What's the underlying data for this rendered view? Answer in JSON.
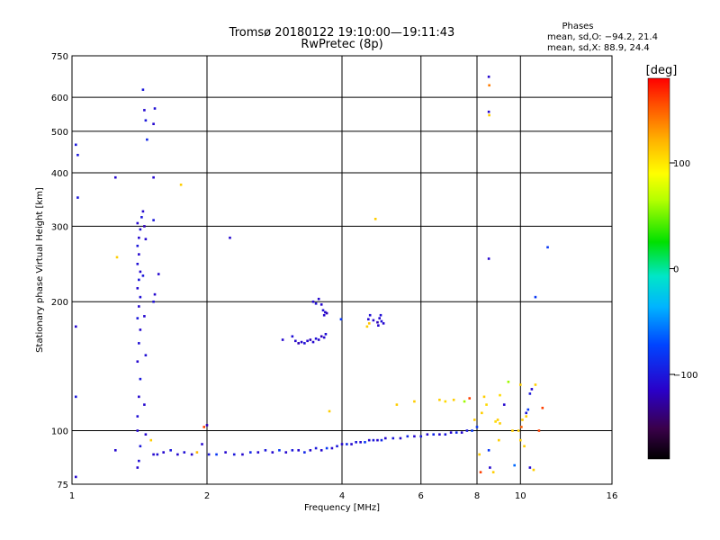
{
  "header": {
    "title_line1": "Tromsø 20180122 19:10:00—19:11:43",
    "title_line2": "RwPretec (8p)"
  },
  "phases": {
    "heading": "Phases",
    "line_o": "mean, sd,O: −94.2, 21.4",
    "line_x": "mean, sd,X:  88.9, 24.4"
  },
  "colorbar": {
    "unit_label": "[deg]",
    "ticks": [
      {
        "value": 100,
        "label": "100"
      },
      {
        "value": 0,
        "label": "0"
      },
      {
        "value": -100,
        "label": "−100"
      }
    ],
    "range": [
      -180,
      180
    ]
  },
  "chart_data": {
    "type": "scatter",
    "title": "Tromsø 20180122 19:10:00—19:11:43",
    "subtitle": "RwPretec (8p)",
    "xlabel": "Frequency [MHz]",
    "ylabel": "Stationary phase Virtual Height [km]",
    "x_scale": "log2",
    "y_scale": "log",
    "xlim": [
      1,
      16
    ],
    "ylim": [
      75,
      750
    ],
    "x_ticks": [
      {
        "value": 1,
        "label": "1"
      },
      {
        "value": 2,
        "label": "2"
      },
      {
        "value": 4,
        "label": "4"
      },
      {
        "value": 6,
        "label": "6"
      },
      {
        "value": 8,
        "label": "8"
      },
      {
        "value": 10,
        "label": "10"
      },
      {
        "value": 16,
        "label": "16"
      }
    ],
    "y_ticks": [
      {
        "value": 75,
        "label": "75"
      },
      {
        "value": 100,
        "label": "100"
      },
      {
        "value": 200,
        "label": "200"
      },
      {
        "value": 300,
        "label": "300"
      },
      {
        "value": 400,
        "label": "400"
      },
      {
        "value": 500,
        "label": "500"
      },
      {
        "value": 600,
        "label": "600"
      },
      {
        "value": 750,
        "label": "750"
      }
    ],
    "grid": true,
    "color_by": "phase [deg]",
    "series": [
      {
        "points": [
          {
            "x": 1.02,
            "y": 78,
            "c": -110
          },
          {
            "x": 1.02,
            "y": 120,
            "c": -100
          },
          {
            "x": 1.02,
            "y": 175,
            "c": -110
          },
          {
            "x": 1.03,
            "y": 350,
            "c": -100
          },
          {
            "x": 1.03,
            "y": 440,
            "c": -100
          },
          {
            "x": 1.02,
            "y": 465,
            "c": -100
          },
          {
            "x": 1.25,
            "y": 390,
            "c": -110
          },
          {
            "x": 1.26,
            "y": 254,
            "c": 110
          },
          {
            "x": 1.25,
            "y": 90,
            "c": -110
          },
          {
            "x": 1.4,
            "y": 82,
            "c": -110
          },
          {
            "x": 1.41,
            "y": 85,
            "c": -105
          },
          {
            "x": 1.42,
            "y": 92,
            "c": -100
          },
          {
            "x": 1.4,
            "y": 100,
            "c": -110
          },
          {
            "x": 1.4,
            "y": 108,
            "c": -105
          },
          {
            "x": 1.41,
            "y": 120,
            "c": -110
          },
          {
            "x": 1.42,
            "y": 132,
            "c": -100
          },
          {
            "x": 1.4,
            "y": 145,
            "c": -110
          },
          {
            "x": 1.41,
            "y": 160,
            "c": -105
          },
          {
            "x": 1.42,
            "y": 172,
            "c": -110
          },
          {
            "x": 1.4,
            "y": 183,
            "c": -100
          },
          {
            "x": 1.41,
            "y": 195,
            "c": -110
          },
          {
            "x": 1.42,
            "y": 205,
            "c": -105
          },
          {
            "x": 1.4,
            "y": 215,
            "c": -110
          },
          {
            "x": 1.41,
            "y": 225,
            "c": -100
          },
          {
            "x": 1.42,
            "y": 235,
            "c": -110
          },
          {
            "x": 1.4,
            "y": 245,
            "c": -105
          },
          {
            "x": 1.41,
            "y": 258,
            "c": -110
          },
          {
            "x": 1.4,
            "y": 270,
            "c": -100
          },
          {
            "x": 1.41,
            "y": 282,
            "c": -110
          },
          {
            "x": 1.42,
            "y": 295,
            "c": -105
          },
          {
            "x": 1.4,
            "y": 305,
            "c": -110
          },
          {
            "x": 1.43,
            "y": 315,
            "c": -100
          },
          {
            "x": 1.44,
            "y": 325,
            "c": -110
          },
          {
            "x": 1.45,
            "y": 300,
            "c": -120
          },
          {
            "x": 1.46,
            "y": 280,
            "c": -110
          },
          {
            "x": 1.44,
            "y": 230,
            "c": -100
          },
          {
            "x": 1.45,
            "y": 185,
            "c": -110
          },
          {
            "x": 1.46,
            "y": 150,
            "c": -105
          },
          {
            "x": 1.45,
            "y": 115,
            "c": -110
          },
          {
            "x": 1.46,
            "y": 98,
            "c": -110
          },
          {
            "x": 1.47,
            "y": 478,
            "c": -90
          },
          {
            "x": 1.46,
            "y": 530,
            "c": -100
          },
          {
            "x": 1.45,
            "y": 560,
            "c": -110
          },
          {
            "x": 1.44,
            "y": 625,
            "c": -100
          },
          {
            "x": 1.52,
            "y": 520,
            "c": -110
          },
          {
            "x": 1.53,
            "y": 565,
            "c": -105
          },
          {
            "x": 1.52,
            "y": 390,
            "c": -110
          },
          {
            "x": 1.52,
            "y": 310,
            "c": -100
          },
          {
            "x": 1.53,
            "y": 208,
            "c": -110
          },
          {
            "x": 1.52,
            "y": 200,
            "c": -105
          },
          {
            "x": 1.56,
            "y": 232,
            "c": -110
          },
          {
            "x": 1.5,
            "y": 95,
            "c": 110
          },
          {
            "x": 1.52,
            "y": 88,
            "c": -110
          },
          {
            "x": 1.55,
            "y": 88,
            "c": -105
          },
          {
            "x": 1.6,
            "y": 89,
            "c": -110
          },
          {
            "x": 1.66,
            "y": 90,
            "c": -100
          },
          {
            "x": 1.72,
            "y": 88,
            "c": -110
          },
          {
            "x": 1.78,
            "y": 89,
            "c": -105
          },
          {
            "x": 1.85,
            "y": 88,
            "c": -110
          },
          {
            "x": 1.9,
            "y": 89,
            "c": 120
          },
          {
            "x": 1.95,
            "y": 93,
            "c": -110
          },
          {
            "x": 1.97,
            "y": 102,
            "c": 160
          },
          {
            "x": 2.0,
            "y": 103,
            "c": -120
          },
          {
            "x": 1.75,
            "y": 375,
            "c": 110
          },
          {
            "x": 2.25,
            "y": 282,
            "c": -110
          },
          {
            "x": 2.02,
            "y": 88,
            "c": -100
          },
          {
            "x": 2.1,
            "y": 88,
            "c": -80
          },
          {
            "x": 2.2,
            "y": 89,
            "c": -110
          },
          {
            "x": 2.3,
            "y": 88,
            "c": -100
          },
          {
            "x": 2.4,
            "y": 88,
            "c": -110
          },
          {
            "x": 2.5,
            "y": 89,
            "c": -90
          },
          {
            "x": 2.6,
            "y": 89,
            "c": -110
          },
          {
            "x": 2.7,
            "y": 90,
            "c": -100
          },
          {
            "x": 2.8,
            "y": 89,
            "c": -110
          },
          {
            "x": 2.9,
            "y": 90,
            "c": -80
          },
          {
            "x": 3.0,
            "y": 89,
            "c": -110
          },
          {
            "x": 3.1,
            "y": 90,
            "c": -100
          },
          {
            "x": 3.2,
            "y": 90,
            "c": -110
          },
          {
            "x": 3.3,
            "y": 89,
            "c": -90
          },
          {
            "x": 3.4,
            "y": 90,
            "c": -110
          },
          {
            "x": 3.5,
            "y": 91,
            "c": -100
          },
          {
            "x": 3.6,
            "y": 90,
            "c": -110
          },
          {
            "x": 3.7,
            "y": 91,
            "c": -80
          },
          {
            "x": 3.8,
            "y": 91,
            "c": -110
          },
          {
            "x": 3.9,
            "y": 92,
            "c": -100
          },
          {
            "x": 4.0,
            "y": 93,
            "c": -110
          },
          {
            "x": 4.1,
            "y": 93,
            "c": -90
          },
          {
            "x": 4.2,
            "y": 93,
            "c": -110
          },
          {
            "x": 4.3,
            "y": 94,
            "c": -100
          },
          {
            "x": 4.4,
            "y": 94,
            "c": -110
          },
          {
            "x": 4.5,
            "y": 94,
            "c": -80
          },
          {
            "x": 4.6,
            "y": 95,
            "c": -110
          },
          {
            "x": 4.7,
            "y": 95,
            "c": -100
          },
          {
            "x": 4.8,
            "y": 95,
            "c": -110
          },
          {
            "x": 4.9,
            "y": 95,
            "c": -90
          },
          {
            "x": 5.0,
            "y": 96,
            "c": -110
          },
          {
            "x": 5.2,
            "y": 96,
            "c": -100
          },
          {
            "x": 5.4,
            "y": 96,
            "c": -110
          },
          {
            "x": 5.6,
            "y": 97,
            "c": -90
          },
          {
            "x": 5.8,
            "y": 97,
            "c": -110
          },
          {
            "x": 6.0,
            "y": 97,
            "c": -100
          },
          {
            "x": 6.2,
            "y": 98,
            "c": -110
          },
          {
            "x": 6.4,
            "y": 98,
            "c": -90
          },
          {
            "x": 6.6,
            "y": 98,
            "c": -110
          },
          {
            "x": 6.8,
            "y": 98,
            "c": -100
          },
          {
            "x": 7.0,
            "y": 99,
            "c": -110
          },
          {
            "x": 7.2,
            "y": 99,
            "c": -90
          },
          {
            "x": 7.4,
            "y": 99,
            "c": -110
          },
          {
            "x": 7.6,
            "y": 100,
            "c": -100
          },
          {
            "x": 7.8,
            "y": 100,
            "c": -80
          },
          {
            "x": 2.95,
            "y": 163,
            "c": -110
          },
          {
            "x": 3.1,
            "y": 166,
            "c": -105
          },
          {
            "x": 3.15,
            "y": 162,
            "c": -110
          },
          {
            "x": 3.2,
            "y": 160,
            "c": -120
          },
          {
            "x": 3.25,
            "y": 161,
            "c": -110
          },
          {
            "x": 3.3,
            "y": 160,
            "c": -105
          },
          {
            "x": 3.35,
            "y": 162,
            "c": -110
          },
          {
            "x": 3.4,
            "y": 163,
            "c": -120
          },
          {
            "x": 3.45,
            "y": 161,
            "c": -110
          },
          {
            "x": 3.5,
            "y": 164,
            "c": -105
          },
          {
            "x": 3.55,
            "y": 163,
            "c": -110
          },
          {
            "x": 3.6,
            "y": 166,
            "c": -120
          },
          {
            "x": 3.65,
            "y": 165,
            "c": -110
          },
          {
            "x": 3.68,
            "y": 168,
            "c": -105
          },
          {
            "x": 3.45,
            "y": 200,
            "c": -110
          },
          {
            "x": 3.5,
            "y": 198,
            "c": -105
          },
          {
            "x": 3.55,
            "y": 203,
            "c": -110
          },
          {
            "x": 3.6,
            "y": 197,
            "c": -110
          },
          {
            "x": 3.63,
            "y": 191,
            "c": -105
          },
          {
            "x": 3.67,
            "y": 189,
            "c": -110
          },
          {
            "x": 3.7,
            "y": 188,
            "c": -120
          },
          {
            "x": 3.65,
            "y": 186,
            "c": -110
          },
          {
            "x": 3.75,
            "y": 111,
            "c": 110
          },
          {
            "x": 3.98,
            "y": 182,
            "c": -80
          },
          {
            "x": 4.55,
            "y": 175,
            "c": 110
          },
          {
            "x": 4.6,
            "y": 178,
            "c": 115
          },
          {
            "x": 4.58,
            "y": 182,
            "c": -110
          },
          {
            "x": 4.62,
            "y": 186,
            "c": -105
          },
          {
            "x": 4.7,
            "y": 181,
            "c": -110
          },
          {
            "x": 4.8,
            "y": 179,
            "c": -120
          },
          {
            "x": 4.85,
            "y": 183,
            "c": -110
          },
          {
            "x": 4.9,
            "y": 180,
            "c": -105
          },
          {
            "x": 4.95,
            "y": 178,
            "c": -110
          },
          {
            "x": 4.82,
            "y": 176,
            "c": -110
          },
          {
            "x": 4.88,
            "y": 186,
            "c": -105
          },
          {
            "x": 4.75,
            "y": 312,
            "c": 110
          },
          {
            "x": 5.3,
            "y": 115,
            "c": 110
          },
          {
            "x": 5.8,
            "y": 117,
            "c": 110
          },
          {
            "x": 6.6,
            "y": 118,
            "c": 110
          },
          {
            "x": 6.8,
            "y": 117,
            "c": 105
          },
          {
            "x": 7.1,
            "y": 118,
            "c": 110
          },
          {
            "x": 7.5,
            "y": 117,
            "c": 60
          },
          {
            "x": 7.7,
            "y": 119,
            "c": 160
          },
          {
            "x": 7.9,
            "y": 106,
            "c": 110
          },
          {
            "x": 8.0,
            "y": 102,
            "c": -80
          },
          {
            "x": 8.1,
            "y": 88,
            "c": 110
          },
          {
            "x": 8.15,
            "y": 80,
            "c": 160
          },
          {
            "x": 8.2,
            "y": 110,
            "c": 110
          },
          {
            "x": 8.3,
            "y": 120,
            "c": 110
          },
          {
            "x": 8.4,
            "y": 115,
            "c": 105
          },
          {
            "x": 8.5,
            "y": 90,
            "c": -80
          },
          {
            "x": 8.55,
            "y": 82,
            "c": -110
          },
          {
            "x": 8.7,
            "y": 80,
            "c": 110
          },
          {
            "x": 8.8,
            "y": 105,
            "c": 105
          },
          {
            "x": 8.9,
            "y": 106,
            "c": 110
          },
          {
            "x": 9.0,
            "y": 104,
            "c": 110
          },
          {
            "x": 8.95,
            "y": 95,
            "c": 110
          },
          {
            "x": 9.0,
            "y": 121,
            "c": 105
          },
          {
            "x": 9.2,
            "y": 115,
            "c": -110
          },
          {
            "x": 9.4,
            "y": 130,
            "c": 60
          },
          {
            "x": 9.6,
            "y": 100,
            "c": 110
          },
          {
            "x": 9.7,
            "y": 83,
            "c": -60
          },
          {
            "x": 8.5,
            "y": 670,
            "c": -110
          },
          {
            "x": 8.52,
            "y": 640,
            "c": 140
          },
          {
            "x": 8.5,
            "y": 555,
            "c": -110
          },
          {
            "x": 8.52,
            "y": 545,
            "c": 110
          },
          {
            "x": 8.5,
            "y": 252,
            "c": -110
          },
          {
            "x": 9.9,
            "y": 100,
            "c": 110
          },
          {
            "x": 10.0,
            "y": 95,
            "c": 110
          },
          {
            "x": 10.05,
            "y": 102,
            "c": 150
          },
          {
            "x": 10.1,
            "y": 106,
            "c": 110
          },
          {
            "x": 10.2,
            "y": 92,
            "c": 110
          },
          {
            "x": 10.3,
            "y": 110,
            "c": -100
          },
          {
            "x": 10.4,
            "y": 112,
            "c": -80
          },
          {
            "x": 10.5,
            "y": 122,
            "c": -100
          },
          {
            "x": 10.6,
            "y": 125,
            "c": -110
          },
          {
            "x": 10.3,
            "y": 108,
            "c": 110
          },
          {
            "x": 10.5,
            "y": 82,
            "c": -110
          },
          {
            "x": 10.7,
            "y": 81,
            "c": 110
          },
          {
            "x": 10.0,
            "y": 128,
            "c": 110
          },
          {
            "x": 10.8,
            "y": 128,
            "c": 110
          },
          {
            "x": 11.0,
            "y": 100,
            "c": 160
          },
          {
            "x": 11.2,
            "y": 113,
            "c": 160
          },
          {
            "x": 10.8,
            "y": 205,
            "c": -80
          },
          {
            "x": 11.5,
            "y": 268,
            "c": -80
          }
        ]
      }
    ]
  }
}
